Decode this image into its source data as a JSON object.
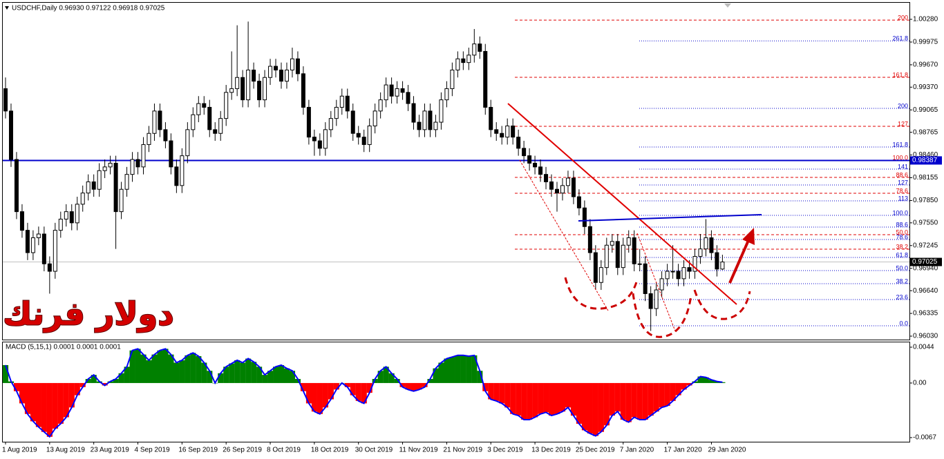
{
  "chart_data": [
    {
      "type": "candlestick",
      "title": "USDCHF,Daily 0.96930 0.97122 0.96918 0.97025",
      "annotation": "دولار فرنك",
      "color_up": "#ffffff",
      "color_down": "#000000",
      "ylim": [
        0.9603,
        1.0028
      ],
      "yticks": [
        {
          "value": 1.0028,
          "label": "1.00280"
        },
        0.99975,
        {
          "value": 0.9967,
          "label": "0.99670"
        },
        {
          "value": 0.9937,
          "label": "0.99370"
        },
        0.99065,
        0.98765,
        {
          "value": 0.9846,
          "label": "0.98460"
        },
        0.98155,
        {
          "value": 0.9785,
          "label": "0.97850"
        },
        {
          "value": 0.9755,
          "label": "0.97550"
        },
        0.97245,
        {
          "value": 0.9694,
          "label": "0.96940"
        },
        {
          "value": 0.9664,
          "label": "0.96640"
        },
        0.96335,
        {
          "value": 0.9603,
          "label": "0.96030"
        }
      ],
      "xticks": [
        {
          "value": 0,
          "label": "1 Aug 2019"
        },
        {
          "value": 8,
          "label": "13 Aug 2019"
        },
        {
          "value": 16,
          "label": "23 Aug 2019"
        },
        {
          "value": 24,
          "label": "4 Sep 2019"
        },
        {
          "value": 32,
          "label": "16 Sep 2019"
        },
        {
          "value": 40,
          "label": "26 Sep 2019"
        },
        {
          "value": 48,
          "label": "8 Oct 2019"
        },
        {
          "value": 56,
          "label": "18 Oct 2019"
        },
        {
          "value": 64,
          "label": "30 Oct 2019"
        },
        {
          "value": 72,
          "label": "11 Nov 2019"
        },
        {
          "value": 80,
          "label": "21 Nov 2019"
        },
        {
          "value": 88,
          "label": "3 Dec 2019"
        },
        {
          "value": 96,
          "label": "13 Dec 2019"
        },
        {
          "value": 104,
          "label": "25 Dec 2019"
        },
        {
          "value": 112,
          "label": "7 Jan 2020"
        },
        {
          "value": 120,
          "label": "17 Jan 2020"
        },
        {
          "value": 128,
          "label": "29 Jan 2020"
        }
      ],
      "hline": {
        "price": 0.98387,
        "color": "#0000cc"
      },
      "current_price": 0.97025,
      "fib_levels": [
        {
          "label": "200",
          "price": 1.0027,
          "color": "#e00000"
        },
        {
          "label": "161.8",
          "price": 0.99502,
          "color": "#e00000"
        },
        {
          "label": "127",
          "price": 0.98845,
          "color": "#e00000"
        },
        {
          "label": "100.0",
          "price": 0.98391,
          "color": "#e00000"
        },
        {
          "label": "88.6",
          "price": 0.9816,
          "color": "#e00000"
        },
        {
          "label": "78.6",
          "price": 0.97947,
          "color": "#e00000"
        },
        {
          "label": "50.0",
          "price": 0.97391,
          "color": "#e00000"
        },
        {
          "label": "38.2",
          "price": 0.97197,
          "color": "#e00000"
        },
        {
          "label": "261.8",
          "price": 0.99991,
          "color": "#0000cc"
        },
        {
          "label": "200",
          "price": 0.99086,
          "color": "#0000cc"
        },
        {
          "label": "161.8",
          "price": 0.98567,
          "color": "#0000cc"
        },
        {
          "label": "141",
          "price": 0.98271,
          "color": "#0000cc"
        },
        {
          "label": "127",
          "price": 0.98058,
          "color": "#0000cc"
        },
        {
          "label": "113",
          "price": 0.97845,
          "color": "#0000cc"
        },
        {
          "label": "100.0",
          "price": 0.9765,
          "color": "#0000cc"
        },
        {
          "label": "88.6",
          "price": 0.97493,
          "color": "#0000cc"
        },
        {
          "label": "78.6",
          "price": 0.97326,
          "color": "#0000cc"
        },
        {
          "label": "61.8",
          "price": 0.97086,
          "color": "#0000cc"
        },
        {
          "label": "50.0",
          "price": 0.9691,
          "color": "#0000cc"
        },
        {
          "label": "38.2",
          "price": 0.96734,
          "color": "#0000cc"
        },
        {
          "label": "23.6",
          "price": 0.96521,
          "color": "#0000cc"
        },
        {
          "label": "0.0",
          "price": 0.96169,
          "color": "#0000cc"
        }
      ],
      "candles": [
        [
          0.9935,
          0.995,
          0.9895,
          0.9905
        ],
        [
          0.9905,
          0.9915,
          0.983,
          0.984
        ],
        [
          0.984,
          0.985,
          0.976,
          0.977
        ],
        [
          0.977,
          0.978,
          0.9735,
          0.9745
        ],
        [
          0.9745,
          0.9755,
          0.9705,
          0.9715
        ],
        [
          0.9715,
          0.9745,
          0.9705,
          0.9735
        ],
        [
          0.9735,
          0.975,
          0.9725,
          0.974
        ],
        [
          0.974,
          0.975,
          0.969,
          0.97
        ],
        [
          0.97,
          0.971,
          0.966,
          0.969
        ],
        [
          0.969,
          0.9755,
          0.968,
          0.9745
        ],
        [
          0.9745,
          0.977,
          0.9735,
          0.976
        ],
        [
          0.976,
          0.978,
          0.975,
          0.977
        ],
        [
          0.977,
          0.978,
          0.9745,
          0.9755
        ],
        [
          0.9755,
          0.979,
          0.9745,
          0.978
        ],
        [
          0.978,
          0.9805,
          0.977,
          0.9795
        ],
        [
          0.9795,
          0.982,
          0.9785,
          0.981
        ],
        [
          0.981,
          0.982,
          0.979,
          0.98
        ],
        [
          0.98,
          0.9835,
          0.979,
          0.9825
        ],
        [
          0.9825,
          0.984,
          0.9815,
          0.983
        ],
        [
          0.983,
          0.9845,
          0.982,
          0.9835
        ],
        [
          0.9835,
          0.9845,
          0.972,
          0.977
        ],
        [
          0.977,
          0.981,
          0.976,
          0.98
        ],
        [
          0.98,
          0.983,
          0.979,
          0.982
        ],
        [
          0.982,
          0.985,
          0.981,
          0.984
        ],
        [
          0.984,
          0.985,
          0.982,
          0.983
        ],
        [
          0.983,
          0.987,
          0.982,
          0.986
        ],
        [
          0.986,
          0.9885,
          0.985,
          0.9875
        ],
        [
          0.9875,
          0.9915,
          0.9865,
          0.9905
        ],
        [
          0.9905,
          0.9915,
          0.987,
          0.988
        ],
        [
          0.988,
          0.989,
          0.9855,
          0.9865
        ],
        [
          0.9865,
          0.9875,
          0.982,
          0.983
        ],
        [
          0.983,
          0.984,
          0.9795,
          0.9805
        ],
        [
          0.9805,
          0.9855,
          0.9795,
          0.9845
        ],
        [
          0.9845,
          0.989,
          0.9835,
          0.988
        ],
        [
          0.988,
          0.991,
          0.987,
          0.99
        ],
        [
          0.99,
          0.9925,
          0.989,
          0.9915
        ],
        [
          0.9915,
          0.9925,
          0.99,
          0.991
        ],
        [
          0.991,
          0.992,
          0.987,
          0.988
        ],
        [
          0.988,
          0.989,
          0.9865,
          0.9875
        ],
        [
          0.9875,
          0.9905,
          0.9865,
          0.9895
        ],
        [
          0.9895,
          0.994,
          0.9885,
          0.993
        ],
        [
          0.993,
          0.9985,
          0.992,
          0.9935
        ],
        [
          0.9935,
          1.002,
          0.9925,
          0.995
        ],
        [
          0.995,
          0.996,
          0.991,
          0.992
        ],
        [
          0.992,
          1.0025,
          0.991,
          0.996
        ],
        [
          0.996,
          0.997,
          0.9935,
          0.9945
        ],
        [
          0.9945,
          0.9955,
          0.991,
          0.992
        ],
        [
          0.992,
          0.996,
          0.991,
          0.995
        ],
        [
          0.995,
          0.9975,
          0.994,
          0.9965
        ],
        [
          0.9965,
          0.9975,
          0.995,
          0.996
        ],
        [
          0.996,
          0.997,
          0.9935,
          0.9945
        ],
        [
          0.9945,
          0.997,
          0.9935,
          0.996
        ],
        [
          0.996,
          0.999,
          0.995,
          0.9975
        ],
        [
          0.9975,
          0.9985,
          0.9945,
          0.9955
        ],
        [
          0.9955,
          0.9965,
          0.99,
          0.991
        ],
        [
          0.991,
          0.992,
          0.986,
          0.987
        ],
        [
          0.987,
          0.988,
          0.9845,
          0.9865
        ],
        [
          0.9865,
          0.9875,
          0.9845,
          0.9855
        ],
        [
          0.9855,
          0.989,
          0.9845,
          0.988
        ],
        [
          0.988,
          0.9905,
          0.987,
          0.9895
        ],
        [
          0.9895,
          0.992,
          0.9885,
          0.991
        ],
        [
          0.991,
          0.9935,
          0.99,
          0.9925
        ],
        [
          0.9925,
          0.9935,
          0.9895,
          0.9905
        ],
        [
          0.9905,
          0.9915,
          0.9865,
          0.9875
        ],
        [
          0.9875,
          0.9885,
          0.986,
          0.987
        ],
        [
          0.987,
          0.988,
          0.985,
          0.986
        ],
        [
          0.986,
          0.9895,
          0.985,
          0.9885
        ],
        [
          0.9885,
          0.9915,
          0.9875,
          0.9905
        ],
        [
          0.9905,
          0.993,
          0.9895,
          0.992
        ],
        [
          0.992,
          0.995,
          0.991,
          0.994
        ],
        [
          0.994,
          0.995,
          0.9915,
          0.9925
        ],
        [
          0.9925,
          0.9945,
          0.9915,
          0.9935
        ],
        [
          0.9935,
          0.9945,
          0.992,
          0.993
        ],
        [
          0.993,
          0.994,
          0.9905,
          0.9915
        ],
        [
          0.9915,
          0.9925,
          0.988,
          0.989
        ],
        [
          0.989,
          0.99,
          0.987,
          0.988
        ],
        [
          0.988,
          0.9915,
          0.987,
          0.9905
        ],
        [
          0.9905,
          0.9915,
          0.987,
          0.988
        ],
        [
          0.988,
          0.99,
          0.987,
          0.989
        ],
        [
          0.989,
          0.993,
          0.988,
          0.992
        ],
        [
          0.992,
          0.9945,
          0.991,
          0.9935
        ],
        [
          0.9935,
          0.997,
          0.9925,
          0.996
        ],
        [
          0.996,
          0.9985,
          0.995,
          0.9975
        ],
        [
          0.9975,
          0.9985,
          0.996,
          0.997
        ],
        [
          0.997,
          0.999,
          0.996,
          0.998
        ],
        [
          0.998,
          1.0015,
          0.997,
          0.9995
        ],
        [
          0.9995,
          1.0005,
          0.9975,
          0.9985
        ],
        [
          0.9985,
          0.9995,
          0.99,
          0.991
        ],
        [
          0.991,
          0.992,
          0.987,
          0.988
        ],
        [
          0.988,
          0.989,
          0.9865,
          0.9875
        ],
        [
          0.9875,
          0.9885,
          0.986,
          0.987
        ],
        [
          0.987,
          0.9895,
          0.986,
          0.9885
        ],
        [
          0.9885,
          0.9895,
          0.986,
          0.987
        ],
        [
          0.987,
          0.988,
          0.9845,
          0.9855
        ],
        [
          0.9855,
          0.9865,
          0.9835,
          0.9845
        ],
        [
          0.9845,
          0.9855,
          0.9825,
          0.9835
        ],
        [
          0.9835,
          0.9845,
          0.982,
          0.983
        ],
        [
          0.983,
          0.984,
          0.981,
          0.982
        ],
        [
          0.982,
          0.983,
          0.98,
          0.981
        ],
        [
          0.981,
          0.982,
          0.979,
          0.98
        ],
        [
          0.98,
          0.981,
          0.977,
          0.9795
        ],
        [
          0.9795,
          0.9815,
          0.9785,
          0.9805
        ],
        [
          0.9805,
          0.9825,
          0.9795,
          0.9815
        ],
        [
          0.9815,
          0.9825,
          0.978,
          0.979
        ],
        [
          0.979,
          0.98,
          0.9765,
          0.9775
        ],
        [
          0.9775,
          0.9785,
          0.974,
          0.975
        ],
        [
          0.975,
          0.976,
          0.9705,
          0.9715
        ],
        [
          0.9715,
          0.9725,
          0.9665,
          0.9675
        ],
        [
          0.9675,
          0.9705,
          0.9665,
          0.9695
        ],
        [
          0.9695,
          0.9735,
          0.9685,
          0.9725
        ],
        [
          0.9725,
          0.974,
          0.9715,
          0.973
        ],
        [
          0.973,
          0.974,
          0.9685,
          0.9695
        ],
        [
          0.9695,
          0.9735,
          0.9685,
          0.9725
        ],
        [
          0.9725,
          0.9745,
          0.9715,
          0.9735
        ],
        [
          0.9735,
          0.9745,
          0.969,
          0.97
        ],
        [
          0.97,
          0.972,
          0.969,
          0.97
        ],
        [
          0.97,
          0.971,
          0.965,
          0.966
        ],
        [
          0.966,
          0.967,
          0.961,
          0.964
        ],
        [
          0.964,
          0.9675,
          0.963,
          0.9665
        ],
        [
          0.9665,
          0.969,
          0.9655,
          0.968
        ],
        [
          0.968,
          0.97,
          0.967,
          0.969
        ],
        [
          0.969,
          0.9725,
          0.968,
          0.969
        ],
        [
          0.969,
          0.97,
          0.967,
          0.968
        ],
        [
          0.968,
          0.9705,
          0.967,
          0.9695
        ],
        [
          0.9695,
          0.9705,
          0.968,
          0.969
        ],
        [
          0.969,
          0.972,
          0.968,
          0.971
        ],
        [
          0.971,
          0.974,
          0.97,
          0.972
        ],
        [
          0.972,
          0.976,
          0.971,
          0.9735
        ],
        [
          0.9735,
          0.9745,
          0.9705,
          0.9715
        ],
        [
          0.9715,
          0.9725,
          0.9683,
          0.9693
        ],
        [
          0.9693,
          0.97122,
          0.96918,
          0.97025
        ]
      ]
    },
    {
      "type": "histogram",
      "title": "MACD (5,15,1) 0.0001 0.0001 0.0001",
      "pos_color": "#008000",
      "neg_color": "#ff0000",
      "line_color": "#0000ff",
      "ylim": [
        -0.0067,
        0.0044
      ],
      "yticks": [
        0.0044,
        {
          "value": 0,
          "label": "0.00"
        },
        -0.0067
      ],
      "values": [
        0.0022,
        0.0002,
        -0.001,
        -0.0025,
        -0.0038,
        -0.0047,
        -0.0054,
        -0.006,
        -0.0066,
        -0.0056,
        -0.005,
        -0.0042,
        -0.003,
        -0.0015,
        -0.0005,
        0.0005,
        0.001,
        0.0002,
        -0.0003,
        0.0002,
        0.0005,
        0.0012,
        0.002,
        0.004,
        0.0042,
        0.0035,
        0.0028,
        0.0035,
        0.004,
        0.0042,
        0.0035,
        0.0025,
        0.0028,
        0.0034,
        0.0037,
        0.0033,
        0.0025,
        0.0015,
        0.0,
        0.0012,
        0.002,
        0.0024,
        0.0028,
        0.0025,
        0.003,
        0.0026,
        0.002,
        0.001,
        0.0015,
        0.002,
        0.0022,
        0.0018,
        0.0015,
        0.0005,
        -0.001,
        -0.0025,
        -0.0035,
        -0.0038,
        -0.003,
        -0.002,
        -0.0008,
        0.0,
        -0.0005,
        -0.0015,
        -0.0022,
        -0.0025,
        -0.0012,
        0.0005,
        0.0015,
        0.002,
        0.0012,
        0.0005,
        -0.0005,
        -0.0008,
        -0.001,
        -0.0008,
        -0.0005,
        0.0005,
        0.0018,
        0.0025,
        0.003,
        0.0032,
        0.0034,
        0.0034,
        0.0033,
        0.0034,
        0.0015,
        -0.001,
        -0.002,
        -0.0022,
        -0.0025,
        -0.003,
        -0.0038,
        -0.004,
        -0.0045,
        -0.0045,
        -0.0042,
        -0.0038,
        -0.0036,
        -0.004,
        -0.0038,
        -0.0035,
        -0.003,
        -0.004,
        -0.005,
        -0.0058,
        -0.0062,
        -0.0065,
        -0.006,
        -0.0052,
        -0.004,
        -0.0035,
        -0.0045,
        -0.0048,
        -0.0042,
        -0.0045,
        -0.0045,
        -0.004,
        -0.0035,
        -0.003,
        -0.0028,
        -0.0022,
        -0.0015,
        -0.0008,
        -0.0003,
        0.0002,
        0.0008,
        0.0007,
        0.0004,
        0.0002,
        0.0001
      ]
    }
  ]
}
